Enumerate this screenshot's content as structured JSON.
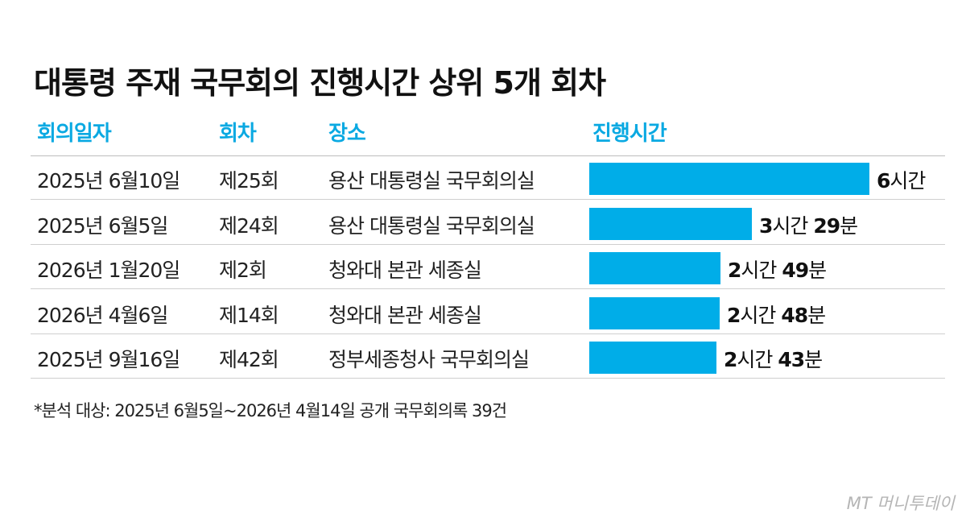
{
  "title": "대통령 주재 국무회의 진행시간 상위 5개 회차",
  "headers": {
    "date": "회의일자",
    "round": "회차",
    "place": "장소",
    "duration": "진행시간"
  },
  "chart_data": {
    "type": "bar",
    "orientation": "horizontal",
    "unit": "minutes",
    "categories": [
      "2025년 6월10일",
      "2025년 6월5일",
      "2026년 1월20일",
      "2026년 4월6일",
      "2025년 9월16일"
    ],
    "values": [
      360,
      209,
      169,
      168,
      163
    ],
    "bar_color": "#00ade8",
    "rows": [
      {
        "date": "2025년 6월10일",
        "round": "제25회",
        "place": "용산 대통령실 국무회의실",
        "minutes": 360,
        "h": "6",
        "h_unit": "시간",
        "m": "",
        "m_unit": ""
      },
      {
        "date": "2025년 6월5일",
        "round": "제24회",
        "place": "용산 대통령실 국무회의실",
        "minutes": 209,
        "h": "3",
        "h_unit": "시간",
        "m": "29",
        "m_unit": "분"
      },
      {
        "date": "2026년 1월20일",
        "round": "제2회",
        "place": "청와대 본관 세종실",
        "minutes": 169,
        "h": "2",
        "h_unit": "시간",
        "m": "49",
        "m_unit": "분"
      },
      {
        "date": "2026년 4월6일",
        "round": "제14회",
        "place": "청와대 본관 세종실",
        "minutes": 168,
        "h": "2",
        "h_unit": "시간",
        "m": "48",
        "m_unit": "분"
      },
      {
        "date": "2025년 9월16일",
        "round": "제42회",
        "place": "정부세종청사 국무회의실",
        "minutes": 163,
        "h": "2",
        "h_unit": "시간",
        "m": "43",
        "m_unit": "분"
      }
    ]
  },
  "footnote": "*분석 대상: 2025년 6월5일~2026년 4월14일 공개 국무회의록 39건",
  "logo": "MT 머니투데이",
  "accent_color": "#0aa9e2"
}
